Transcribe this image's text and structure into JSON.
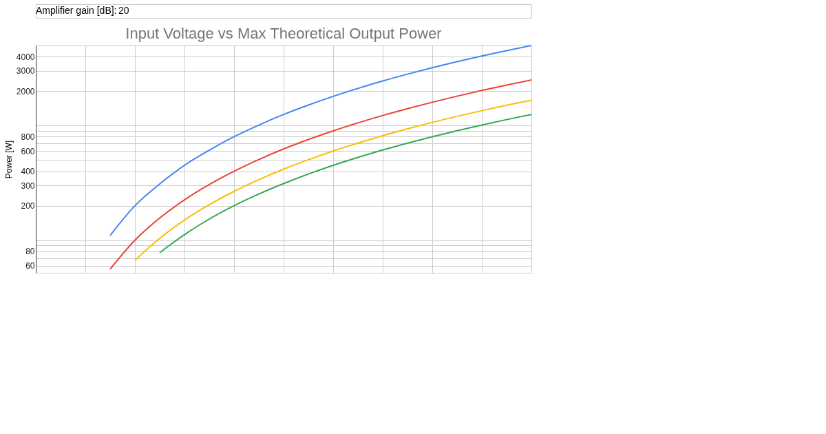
{
  "chart_data": {
    "type": "line",
    "title": "Input Voltage vs Max Theoretical Output Power",
    "ylabel": "Power [W]",
    "annotations": [
      "Amplifier gain [dB]:",
      "20"
    ],
    "categories": [
      null,
      null,
      null,
      null,
      null,
      null,
      null,
      null,
      null,
      null,
      null,
      null,
      null,
      null,
      null,
      null,
      null,
      null,
      null,
      null,
      null
    ],
    "series": [
      {
        "color": "#4285f4",
        "values": [
          null,
          null,
          null,
          110,
          200,
          310,
          450,
          610,
          800,
          1010,
          1250,
          1510,
          1800,
          2110,
          2450,
          2810,
          3200,
          3610,
          4050,
          4510,
          5000
        ]
      },
      {
        "color": "#ea4335",
        "values": [
          null,
          null,
          null,
          56,
          100,
          156,
          225,
          306,
          400,
          506,
          625,
          756,
          900,
          1056,
          1225,
          1406,
          1600,
          1806,
          2025,
          2256,
          2500
        ]
      },
      {
        "color": "#fbbc04",
        "values": [
          null,
          null,
          null,
          null,
          67,
          104,
          150,
          204,
          267,
          337,
          417,
          504,
          600,
          704,
          817,
          937,
          1067,
          1204,
          1350,
          1504,
          1667
        ]
      },
      {
        "color": "#34a853",
        "values": [
          null,
          null,
          null,
          null,
          null,
          78,
          112,
          153,
          200,
          253,
          312,
          378,
          450,
          528,
          612,
          703,
          800,
          903,
          1012,
          1128,
          1250
        ]
      }
    ],
    "log": "y",
    "ylim": [
      52,
      5000
    ],
    "yticks": [
      60,
      {
        "value": 70,
        "label": null
      },
      80,
      {
        "value": 90,
        "label": null
      },
      {
        "value": 100,
        "label": null
      },
      200,
      300,
      400,
      {
        "value": 500,
        "label": null
      },
      600,
      {
        "value": 700,
        "label": null
      },
      800,
      {
        "value": 900,
        "label": null
      },
      {
        "value": 1000,
        "label": null
      },
      2000,
      3000,
      4000
    ],
    "tick_labels": "y",
    "grid": true,
    "legend": false,
    "marker": "none",
    "line_style": "solid"
  }
}
